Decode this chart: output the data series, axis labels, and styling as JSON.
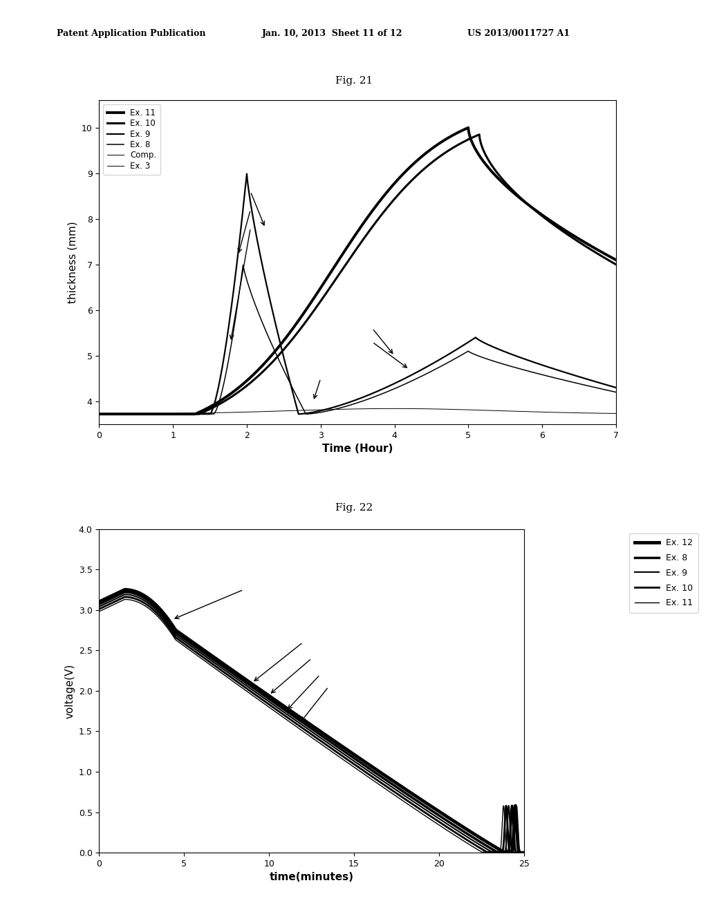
{
  "header_left": "Patent Application Publication",
  "header_mid": "Jan. 10, 2013  Sheet 11 of 12",
  "header_right": "US 2013/0011727 A1",
  "fig21_title": "Fig. 21",
  "fig22_title": "Fig. 22",
  "fig21": {
    "xlabel": "Time (Hour)",
    "ylabel": "thickness (mm)",
    "xlim": [
      0,
      7
    ],
    "ylim": [
      3.5,
      10.6
    ],
    "xticks": [
      0,
      1,
      2,
      3,
      4,
      5,
      6,
      7
    ],
    "yticks": [
      4,
      5,
      6,
      7,
      8,
      9,
      10
    ],
    "legend_labels": [
      "Ex. 11",
      "Ex. 10",
      "Ex. 9",
      "Ex. 8",
      "Comp.",
      "Ex. 3"
    ],
    "legend_lw": [
      2.8,
      2.2,
      1.6,
      1.1,
      0.7,
      0.7
    ]
  },
  "fig22": {
    "xlabel": "time(minutes)",
    "ylabel": "voltage(V)",
    "xlim": [
      0,
      25
    ],
    "ylim": [
      0.0,
      4.0
    ],
    "xticks": [
      0,
      5,
      10,
      15,
      20,
      25
    ],
    "yticks": [
      0.0,
      0.5,
      1.0,
      1.5,
      2.0,
      2.5,
      3.0,
      3.5,
      4.0
    ],
    "legend_labels": [
      "Ex. 12",
      "Ex. 8",
      "Ex. 9",
      "Ex. 10",
      "Ex. 11"
    ],
    "legend_lw": [
      3.5,
      2.5,
      1.5,
      2.0,
      1.0
    ]
  }
}
